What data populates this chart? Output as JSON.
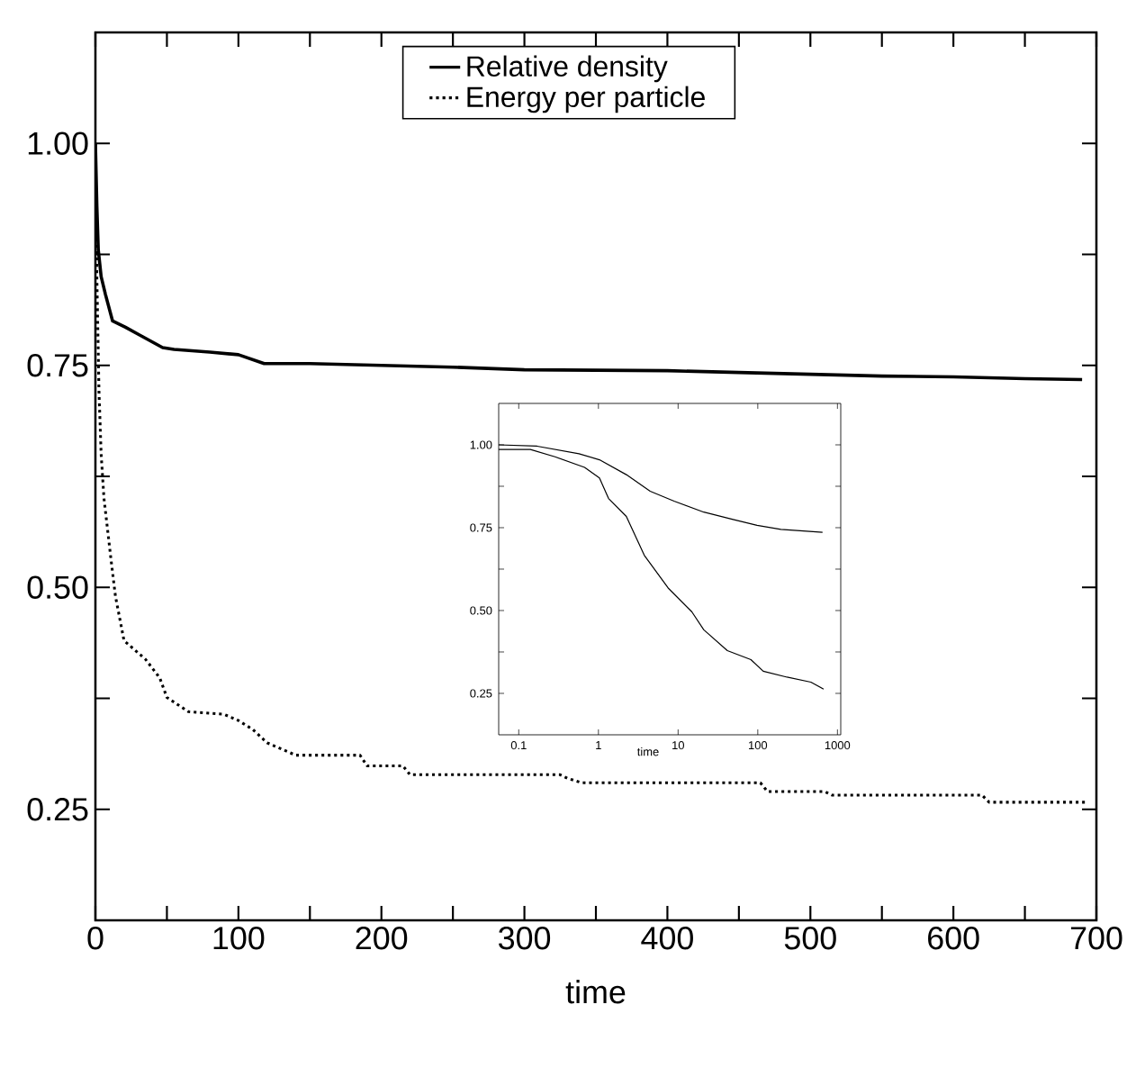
{
  "chart_data": [
    {
      "type": "line",
      "xlabel": "time",
      "xlim": [
        0,
        700
      ],
      "ylim": [
        0.125,
        1.125
      ],
      "xticks": [
        0,
        {
          "value": 50,
          "label": null
        },
        100,
        {
          "value": 150,
          "label": null
        },
        200,
        {
          "value": 250,
          "label": null
        },
        300,
        {
          "value": 350,
          "label": null
        },
        400,
        {
          "value": 450,
          "label": null
        },
        500,
        {
          "value": 550,
          "label": null
        },
        600,
        {
          "value": 650,
          "label": null
        },
        700
      ],
      "yticks": [
        {
          "value": 0.25,
          "label": "0.25"
        },
        {
          "value": 0.375,
          "label": null
        },
        {
          "value": 0.5,
          "label": "0.50"
        },
        {
          "value": 0.625,
          "label": null
        },
        {
          "value": 0.75,
          "label": "0.75"
        },
        {
          "value": 0.875,
          "label": null
        },
        {
          "value": 1,
          "label": "1.00"
        }
      ],
      "legend": "top",
      "grid": false,
      "marker": "none",
      "series": [
        {
          "name": "Relative density",
          "color": "#000000",
          "line_style": "solid",
          "x": [
            0,
            1,
            2,
            4,
            7,
            12,
            21,
            30,
            47,
            55,
            80,
            100,
            118,
            150,
            200,
            250,
            300,
            400,
            450,
            500,
            550,
            600,
            650,
            690
          ],
          "values": [
            1.0,
            0.93,
            0.88,
            0.85,
            0.83,
            0.8,
            0.793,
            0.785,
            0.77,
            0.768,
            0.765,
            0.762,
            0.752,
            0.752,
            0.75,
            0.748,
            0.745,
            0.744,
            0.742,
            0.74,
            0.738,
            0.737,
            0.735,
            0.734
          ]
        },
        {
          "name": "Energy per particle",
          "color": "#000000",
          "line_style": "dotted",
          "x": [
            0,
            1,
            2.5,
            4,
            6,
            11,
            14,
            20,
            35,
            45,
            50,
            65,
            90,
            100,
            110,
            120,
            140,
            185,
            190,
            215,
            220,
            325,
            330,
            340,
            465,
            470,
            510,
            515,
            620,
            625,
            692
          ],
          "values": [
            1.0,
            0.85,
            0.72,
            0.65,
            0.6,
            0.53,
            0.49,
            0.44,
            0.419,
            0.398,
            0.376,
            0.36,
            0.357,
            0.35,
            0.34,
            0.325,
            0.311,
            0.311,
            0.299,
            0.299,
            0.289,
            0.289,
            0.285,
            0.28,
            0.28,
            0.27,
            0.27,
            0.266,
            0.266,
            0.258,
            0.258
          ]
        }
      ]
    },
    {
      "type": "line",
      "xlabel": "time",
      "log": "x",
      "xlim": [
        0.056,
        1100
      ],
      "ylim": [
        0.125,
        1.125
      ],
      "xticks": [
        0.1,
        1,
        10,
        100,
        1000
      ],
      "yticks": [
        {
          "value": 0.25,
          "label": "0.25"
        },
        {
          "value": 0.375,
          "label": null
        },
        {
          "value": 0.5,
          "label": "0.50"
        },
        {
          "value": 0.625,
          "label": null
        },
        {
          "value": 0.75,
          "label": "0.75"
        },
        {
          "value": 0.875,
          "label": null
        },
        {
          "value": 1,
          "label": "1.00"
        }
      ],
      "grid": false,
      "marker": "none",
      "series": [
        {
          "color": "#000000",
          "line_style": "solid",
          "x": [
            0.056,
            0.17,
            0.57,
            1.03,
            2.24,
            4.46,
            8.9,
            21,
            49,
            98,
            195,
            650
          ],
          "values": [
            1.0,
            0.996,
            0.973,
            0.955,
            0.91,
            0.86,
            0.83,
            0.797,
            0.775,
            0.757,
            0.745,
            0.736
          ]
        },
        {
          "color": "#000000",
          "line_style": "solid",
          "x": [
            0.056,
            0.14,
            0.285,
            0.67,
            1.03,
            1.34,
            2.24,
            3.76,
            7.5,
            14.9,
            21,
            41.5,
            82,
            117,
            233,
            464,
            670
          ],
          "values": [
            0.986,
            0.986,
            0.964,
            0.932,
            0.9,
            0.838,
            0.784,
            0.667,
            0.568,
            0.496,
            0.442,
            0.379,
            0.352,
            0.317,
            0.299,
            0.284,
            0.263
          ]
        }
      ]
    }
  ]
}
